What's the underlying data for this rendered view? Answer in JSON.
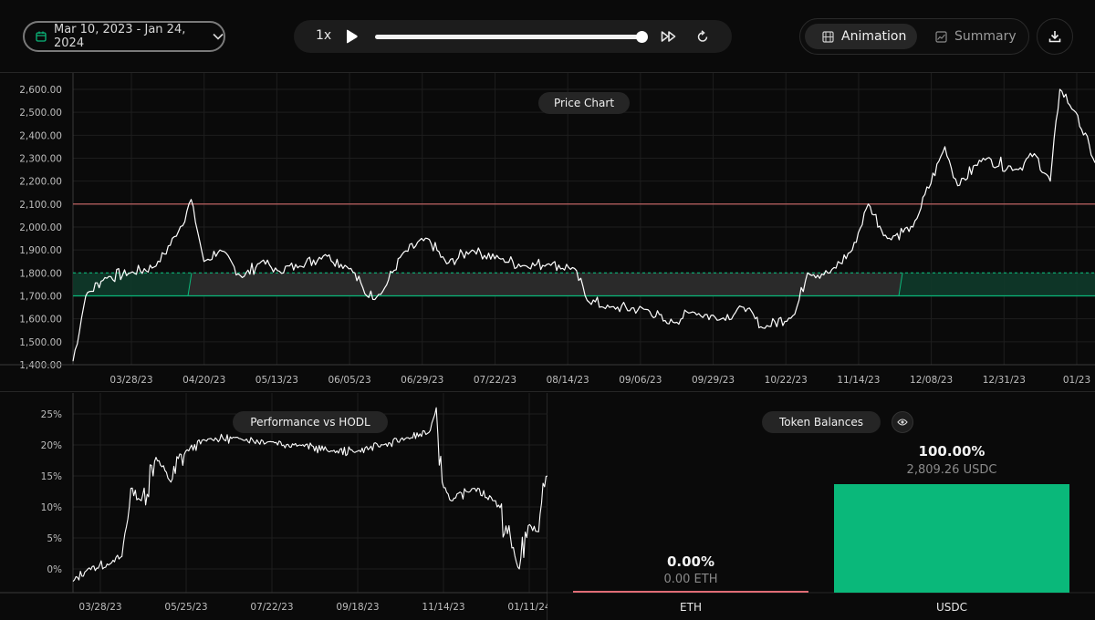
{
  "header": {
    "date_range": "Mar 10, 2023 - Jan 24, 2024",
    "speed": "1x",
    "progress": 1.0,
    "view_tabs": [
      {
        "label": "Animation",
        "active": true
      },
      {
        "label": "Summary",
        "active": false
      }
    ]
  },
  "price_chart": {
    "title": "Price Chart",
    "y_ticks": [
      "2,600.00",
      "2,500.00",
      "2,400.00",
      "2,300.00",
      "2,200.00",
      "2,100.00",
      "2,000.00",
      "1,900.00",
      "1,800.00",
      "1,700.00",
      "1,600.00",
      "1,500.00",
      "1,400.00"
    ],
    "x_ticks": [
      "03/28/23",
      "04/20/23",
      "05/13/23",
      "06/05/23",
      "06/29/23",
      "07/22/23",
      "08/14/23",
      "09/06/23",
      "09/29/23",
      "10/22/23",
      "11/14/23",
      "12/08/23",
      "12/31/23",
      "01/23"
    ]
  },
  "performance_chart": {
    "title": "Performance vs HODL",
    "y_ticks": [
      "25%",
      "20%",
      "15%",
      "10%",
      "5%",
      "0%"
    ],
    "x_ticks": [
      "03/28/23",
      "05/25/23",
      "07/22/23",
      "09/18/23",
      "11/14/23",
      "01/11/24"
    ]
  },
  "token_balances": {
    "title": "Token Balances",
    "tokens": [
      {
        "symbol": "ETH",
        "percent": "0.00%",
        "amount": "0.00 ETH",
        "share": 0.0,
        "color": "#e06c75"
      },
      {
        "symbol": "USDC",
        "percent": "100.00%",
        "amount": "2,809.26 USDC",
        "share": 1.0,
        "color": "#0ab87a"
      }
    ]
  },
  "colors": {
    "accent": "#0ab87a",
    "upper_line": "#d06b6b",
    "range_band": "#2a2a2a",
    "line": "#ffffff"
  },
  "chart_data": [
    {
      "type": "line",
      "title": "Price Chart",
      "xlabel": "",
      "ylabel": "",
      "ylim": [
        1400,
        2600
      ],
      "x_range": [
        "03/10/23",
        "01/24/24"
      ],
      "x": [
        "03/10/23",
        "03/14/23",
        "03/20/23",
        "03/28/23",
        "04/05/23",
        "04/12/23",
        "04/16/23",
        "04/20/23",
        "04/25/23",
        "05/02/23",
        "05/08/23",
        "05/13/23",
        "05/20/23",
        "05/28/23",
        "06/05/23",
        "06/10/23",
        "06/15/23",
        "06/21/23",
        "06/29/23",
        "07/05/23",
        "07/13/23",
        "07/22/23",
        "07/30/23",
        "08/06/23",
        "08/14/23",
        "08/18/23",
        "08/25/23",
        "09/06/23",
        "09/12/23",
        "09/20/23",
        "09/29/23",
        "10/06/23",
        "10/12/23",
        "10/22/23",
        "10/26/23",
        "11/02/23",
        "11/09/23",
        "11/14/23",
        "11/20/23",
        "11/28/23",
        "12/08/23",
        "12/12/23",
        "12/20/23",
        "12/31/23",
        "01/05/24",
        "01/10/24",
        "01/13/24",
        "01/18/24",
        "01/24/24"
      ],
      "values": [
        1415,
        1700,
        1780,
        1800,
        1830,
        1980,
        2120,
        1850,
        1900,
        1780,
        1850,
        1810,
        1830,
        1880,
        1820,
        1700,
        1720,
        1880,
        1950,
        1840,
        1900,
        1860,
        1830,
        1840,
        1820,
        1680,
        1650,
        1640,
        1580,
        1630,
        1600,
        1650,
        1560,
        1620,
        1800,
        1800,
        1900,
        2100,
        1950,
        2000,
        2350,
        2180,
        2300,
        2250,
        2320,
        2200,
        2600,
        2500,
        2280
      ],
      "range_lower": 1700,
      "range_upper": 1800,
      "upper_line": 2100,
      "grid": true
    },
    {
      "type": "line",
      "title": "Performance vs HODL",
      "ylim": [
        0,
        25
      ],
      "y_unit": "%",
      "x_range": [
        "03/10/23",
        "01/24/24"
      ],
      "x": [
        "03/10/23",
        "03/20/23",
        "04/05/23",
        "04/12/23",
        "04/18/23",
        "04/25/23",
        "05/05/23",
        "05/15/23",
        "05/25/23",
        "06/10/23",
        "07/01/23",
        "07/22/23",
        "08/10/23",
        "09/01/23",
        "09/18/23",
        "10/05/23",
        "10/20/23",
        "11/05/23",
        "11/10/23",
        "11/14/23",
        "11/20/23",
        "12/05/23",
        "12/20/23",
        "01/05/24",
        "01/11/24",
        "01/18/24",
        "01/24/24"
      ],
      "values": [
        -2,
        0,
        1,
        2,
        13,
        11,
        18,
        14,
        19,
        21,
        21,
        20.5,
        20,
        19,
        19,
        20,
        21,
        22,
        26,
        14,
        11,
        13,
        11,
        0,
        7,
        6,
        15
      ],
      "grid": true
    },
    {
      "type": "bar",
      "title": "Token Balances",
      "categories": [
        "ETH",
        "USDC"
      ],
      "values": [
        0.0,
        100.0
      ],
      "y_unit": "%"
    }
  ]
}
